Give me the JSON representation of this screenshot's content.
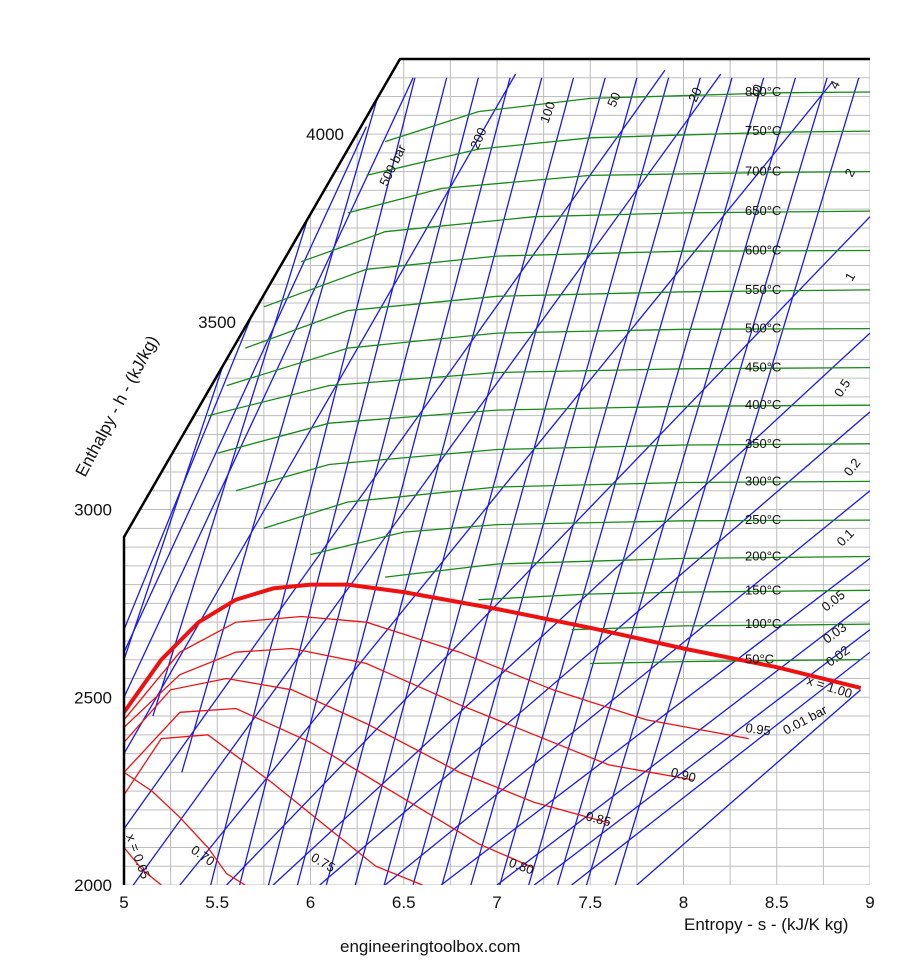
{
  "chart_data": {
    "type": "line",
    "title": "",
    "xlabel": "Entropy - s - (kJ/K kg)",
    "ylabel": "Enthalpy - h - (kJ/kg)",
    "xlim": [
      5,
      9
    ],
    "ylim": [
      2000,
      4200
    ],
    "x_ticks": [
      "5",
      "5.5",
      "6",
      "6.5",
      "7",
      "7.5",
      "8",
      "8.5",
      "9"
    ],
    "y_ticks": [
      "2000",
      "2500",
      "3000",
      "3500",
      "4000"
    ],
    "grid": true,
    "source": "engineeringtoolbox.com",
    "colors": {
      "isobar": "#1a1aee",
      "isotherm": "#178a17",
      "quality": "#ee1111",
      "saturation": "#ee1111",
      "grid": "#bdbdbd"
    },
    "saturation_line": {
      "name": "x = 1.00",
      "points": [
        [
          5.0,
          2460
        ],
        [
          5.2,
          2600
        ],
        [
          5.4,
          2700
        ],
        [
          5.6,
          2760
        ],
        [
          5.8,
          2790
        ],
        [
          6.0,
          2800
        ],
        [
          6.2,
          2800
        ],
        [
          6.5,
          2780
        ],
        [
          7.0,
          2735
        ],
        [
          7.5,
          2685
        ],
        [
          8.0,
          2630
        ],
        [
          8.5,
          2580
        ],
        [
          8.95,
          2525
        ]
      ]
    },
    "quality_lines": [
      {
        "name": "0.95",
        "points": [
          [
            5.0,
            2440
          ],
          [
            5.3,
            2620
          ],
          [
            5.6,
            2700
          ],
          [
            5.95,
            2715
          ],
          [
            6.3,
            2700
          ],
          [
            6.8,
            2620
          ],
          [
            7.3,
            2520
          ],
          [
            7.8,
            2440
          ],
          [
            8.35,
            2390
          ]
        ]
      },
      {
        "name": "0.90",
        "points": [
          [
            5.0,
            2420
          ],
          [
            5.3,
            2560
          ],
          [
            5.6,
            2620
          ],
          [
            5.9,
            2630
          ],
          [
            6.3,
            2590
          ],
          [
            6.8,
            2480
          ],
          [
            7.3,
            2380
          ],
          [
            7.6,
            2320
          ],
          [
            8.05,
            2280
          ]
        ]
      },
      {
        "name": "0.85",
        "points": [
          [
            5.0,
            2380
          ],
          [
            5.25,
            2520
          ],
          [
            5.55,
            2550
          ],
          [
            5.9,
            2520
          ],
          [
            6.3,
            2430
          ],
          [
            6.8,
            2300
          ],
          [
            7.2,
            2220
          ],
          [
            7.6,
            2165
          ]
        ]
      },
      {
        "name": "0.80",
        "points": [
          [
            5.0,
            2300
          ],
          [
            5.3,
            2460
          ],
          [
            5.6,
            2470
          ],
          [
            6.0,
            2380
          ],
          [
            6.5,
            2230
          ],
          [
            6.9,
            2110
          ],
          [
            7.2,
            2045
          ]
        ]
      },
      {
        "name": "0.75",
        "points": [
          [
            5.0,
            2240
          ],
          [
            5.2,
            2390
          ],
          [
            5.45,
            2400
          ],
          [
            5.8,
            2270
          ],
          [
            6.1,
            2150
          ],
          [
            6.35,
            2050
          ],
          [
            6.6,
            2000
          ]
        ]
      },
      {
        "name": "0.70",
        "points": [
          [
            5.0,
            2300
          ],
          [
            5.15,
            2250
          ],
          [
            5.3,
            2180
          ],
          [
            5.45,
            2100
          ],
          [
            5.55,
            2030
          ],
          [
            5.65,
            2000
          ]
        ]
      },
      {
        "name": "x = 0.65",
        "points": [
          [
            5.0,
            2100
          ],
          [
            5.1,
            2040
          ],
          [
            5.2,
            2000
          ]
        ]
      }
    ],
    "isotherms": [
      {
        "name": "50°C",
        "points": [
          [
            7.5,
            2590
          ],
          [
            8.0,
            2595
          ],
          [
            8.5,
            2598
          ],
          [
            8.95,
            2600
          ]
        ]
      },
      {
        "name": "100°C",
        "points": [
          [
            7.4,
            2680
          ],
          [
            8.0,
            2690
          ],
          [
            8.5,
            2692
          ],
          [
            9.0,
            2695
          ]
        ]
      },
      {
        "name": "150°C",
        "points": [
          [
            6.9,
            2760
          ],
          [
            7.5,
            2775
          ],
          [
            8.0,
            2780
          ],
          [
            9.0,
            2785
          ]
        ]
      },
      {
        "name": "200°C",
        "points": [
          [
            6.4,
            2820
          ],
          [
            7.0,
            2855
          ],
          [
            8.0,
            2870
          ],
          [
            9.0,
            2875
          ]
        ]
      },
      {
        "name": "250°C",
        "points": [
          [
            6.0,
            2880
          ],
          [
            6.5,
            2940
          ],
          [
            7.0,
            2960
          ],
          [
            8.0,
            2970
          ],
          [
            9.0,
            2972
          ]
        ]
      },
      {
        "name": "300°C",
        "points": [
          [
            5.75,
            2950
          ],
          [
            6.2,
            3020
          ],
          [
            7.0,
            3060
          ],
          [
            8.0,
            3072
          ],
          [
            9.0,
            3075
          ]
        ]
      },
      {
        "name": "350°C",
        "points": [
          [
            5.6,
            3050
          ],
          [
            6.1,
            3120
          ],
          [
            7.0,
            3160
          ],
          [
            8.0,
            3172
          ],
          [
            9.0,
            3175
          ]
        ]
      },
      {
        "name": "400°C",
        "points": [
          [
            5.5,
            3150
          ],
          [
            6.1,
            3230
          ],
          [
            7.0,
            3265
          ],
          [
            8.0,
            3275
          ],
          [
            9.0,
            3278
          ]
        ]
      },
      {
        "name": "450°C",
        "points": [
          [
            5.45,
            3250
          ],
          [
            6.1,
            3330
          ],
          [
            7.0,
            3365
          ],
          [
            8.0,
            3375
          ],
          [
            9.0,
            3378
          ]
        ]
      },
      {
        "name": "500°C",
        "points": [
          [
            5.55,
            3330
          ],
          [
            6.2,
            3430
          ],
          [
            7.0,
            3470
          ],
          [
            8.0,
            3480
          ],
          [
            9.0,
            3482
          ]
        ]
      },
      {
        "name": "550°C",
        "points": [
          [
            5.65,
            3430
          ],
          [
            6.2,
            3530
          ],
          [
            7.0,
            3568
          ],
          [
            8.0,
            3580
          ],
          [
            9.0,
            3585
          ]
        ]
      },
      {
        "name": "600°C",
        "points": [
          [
            5.75,
            3540
          ],
          [
            6.3,
            3640
          ],
          [
            7.0,
            3675
          ],
          [
            8.0,
            3688
          ],
          [
            9.0,
            3690
          ]
        ]
      },
      {
        "name": "650°C",
        "points": [
          [
            5.95,
            3660
          ],
          [
            6.4,
            3740
          ],
          [
            7.2,
            3780
          ],
          [
            8.0,
            3790
          ],
          [
            9.0,
            3795
          ]
        ]
      },
      {
        "name": "700°C",
        "points": [
          [
            6.2,
            3790
          ],
          [
            6.7,
            3855
          ],
          [
            7.5,
            3890
          ],
          [
            8.5,
            3898
          ],
          [
            9.0,
            3900
          ]
        ]
      },
      {
        "name": "750°C",
        "points": [
          [
            6.3,
            3890
          ],
          [
            6.9,
            3960
          ],
          [
            7.5,
            3990
          ],
          [
            8.5,
            4005
          ],
          [
            9.0,
            4008
          ]
        ]
      },
      {
        "name": "800°C",
        "points": [
          [
            6.4,
            3980
          ],
          [
            6.9,
            4060
          ],
          [
            7.5,
            4095
          ],
          [
            8.5,
            4110
          ],
          [
            9.0,
            4112
          ]
        ]
      }
    ],
    "isobars": [
      {
        "name": "0.01 bar",
        "points": [
          [
            7.75,
            2000
          ],
          [
            8.95,
            2520
          ]
        ]
      },
      {
        "name": "0.02",
        "points": [
          [
            7.4,
            2000
          ],
          [
            9.0,
            2620
          ]
        ]
      },
      {
        "name": "0.03",
        "points": [
          [
            7.2,
            2000
          ],
          [
            9.0,
            2680
          ]
        ]
      },
      {
        "name": "0.05",
        "points": [
          [
            7.0,
            2000
          ],
          [
            9.0,
            2760
          ]
        ]
      },
      {
        "name": "0.1",
        "points": [
          [
            6.7,
            2000
          ],
          [
            9.0,
            2870
          ]
        ]
      },
      {
        "name": "0.2",
        "points": [
          [
            6.4,
            2000
          ],
          [
            9.0,
            3050
          ]
        ]
      },
      {
        "name": "0.5",
        "points": [
          [
            6.05,
            2000
          ],
          [
            9.0,
            3260
          ]
        ]
      },
      {
        "name": "1",
        "points": [
          [
            5.8,
            2000
          ],
          [
            9.0,
            3470
          ]
        ]
      },
      {
        "name": "2",
        "points": [
          [
            5.55,
            2000
          ],
          [
            9.0,
            3780
          ]
        ]
      },
      {
        "name": "4",
        "points": [
          [
            5.3,
            2000
          ],
          [
            8.8,
            4140
          ]
        ]
      },
      {
        "name": "10",
        "points": [
          [
            5.05,
            2000
          ],
          [
            8.2,
            4160
          ]
        ]
      },
      {
        "name": "20",
        "points": [
          [
            5.0,
            2150
          ],
          [
            7.9,
            4170
          ]
        ]
      },
      {
        "name": "50",
        "points": [
          [
            5.0,
            2350
          ],
          [
            7.1,
            4160
          ]
        ]
      },
      {
        "name": "100",
        "points": [
          [
            5.0,
            2500
          ],
          [
            6.55,
            4150
          ]
        ]
      },
      {
        "name": "200",
        "points": [
          [
            5.0,
            2620
          ],
          [
            6.3,
            4020
          ]
        ]
      },
      {
        "name": "500 bar",
        "points": [
          [
            5.0,
            2680
          ],
          [
            6.0,
            3900
          ]
        ]
      }
    ],
    "label_texts": {
      "isotherms": [
        "50°C",
        "100°C",
        "150°C",
        "200°C",
        "250°C",
        "300°C",
        "350°C",
        "400°C",
        "450°C",
        "500°C",
        "550°C",
        "600°C",
        "650°C",
        "700°C",
        "750°C",
        "800°C"
      ],
      "isobars": [
        "500 bar",
        "200",
        "100",
        "50",
        "20",
        "10",
        "4",
        "2",
        "1",
        "0.5",
        "0.2",
        "0.1",
        "0.05",
        "0.03",
        "0.02",
        "0.01 bar"
      ],
      "qualities": [
        "x = 1.00",
        "0.95",
        "0.90",
        "0.85",
        "0.80",
        "0.75",
        "0.70",
        "x = 0.65"
      ]
    }
  }
}
